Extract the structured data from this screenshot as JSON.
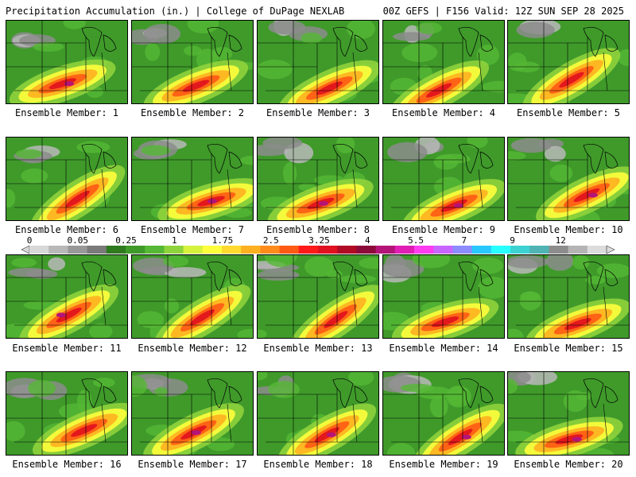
{
  "header": {
    "title": "Precipitation Accumulation (in.) | College of DuPage NEXLAB",
    "run_info": "00Z GEFS | F156 Valid: 12Z SUN SEP 28 2025"
  },
  "colorbar": {
    "tick_labels": [
      "0",
      "0.05",
      "0.25",
      "1",
      "1.75",
      "2.5",
      "3.25",
      "4",
      "5.5",
      "7",
      "9",
      "12"
    ],
    "colors": [
      "#d8d8d8",
      "#b8b8b8",
      "#989898",
      "#7a7a7a",
      "#2f7a1f",
      "#3f9a2a",
      "#55b835",
      "#8fd33c",
      "#d6f23c",
      "#ffff3c",
      "#ffd92e",
      "#ffb020",
      "#ff8c1a",
      "#ff5a14",
      "#ff1a1a",
      "#e0101e",
      "#b00a24",
      "#8c0a3a",
      "#b41478",
      "#e01eb4",
      "#ff3cf0",
      "#c864ff",
      "#8c8cff",
      "#28c8ff",
      "#28ffff",
      "#3cd2d2",
      "#50b4b4",
      "#8c8c8c",
      "#b4b4b4",
      "#dcdcdc"
    ]
  },
  "panels": [
    {
      "label": "Ensemble Member: 1"
    },
    {
      "label": "Ensemble Member: 2"
    },
    {
      "label": "Ensemble Member: 3"
    },
    {
      "label": "Ensemble Member: 4"
    },
    {
      "label": "Ensemble Member: 5"
    },
    {
      "label": "Ensemble Member: 6"
    },
    {
      "label": "Ensemble Member: 7"
    },
    {
      "label": "Ensemble Member: 8"
    },
    {
      "label": "Ensemble Member: 9"
    },
    {
      "label": "Ensemble Member: 10"
    },
    {
      "label": "Ensemble Member: 11"
    },
    {
      "label": "Ensemble Member: 12"
    },
    {
      "label": "Ensemble Member: 13"
    },
    {
      "label": "Ensemble Member: 14"
    },
    {
      "label": "Ensemble Member: 15"
    },
    {
      "label": "Ensemble Member: 16"
    },
    {
      "label": "Ensemble Member: 17"
    },
    {
      "label": "Ensemble Member: 18"
    },
    {
      "label": "Ensemble Member: 19"
    },
    {
      "label": "Ensemble Member: 20"
    }
  ]
}
